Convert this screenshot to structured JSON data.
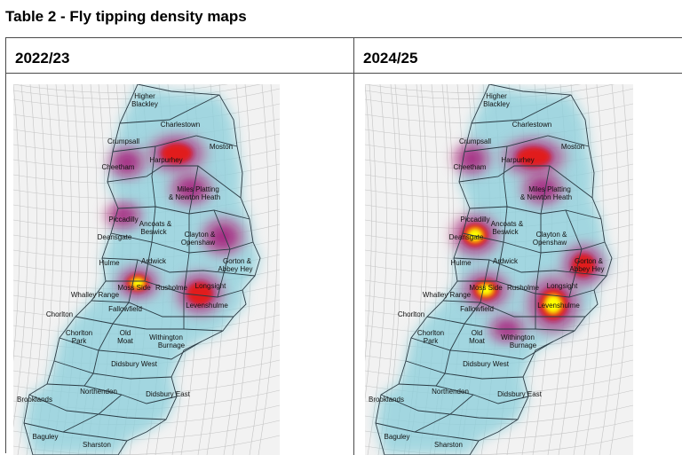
{
  "title": "Table 2 - Fly tipping density maps",
  "columns": [
    {
      "label": "2022/23"
    },
    {
      "label": "2024/25"
    }
  ],
  "map_labels": [
    "Higher Blackley",
    "Charlestown",
    "Crumpsall",
    "Moston",
    "Harpurhey",
    "Cheetham",
    "Miles Platting & Newton Heath",
    "Piccadilly",
    "Ancoats & Beswick",
    "Deansgate",
    "Clayton & Openshaw",
    "Hulme",
    "Ardwick",
    "Gorton & Abbey Hey",
    "Longsight",
    "Moss Side",
    "Rusholme",
    "Whalley Range",
    "Fallowfield",
    "Levenshulme",
    "Chorlton",
    "Chorlton Park",
    "Old Moat",
    "Withington",
    "Burnage",
    "Didsbury West",
    "Didsbury East",
    "Northenden",
    "Brooklands",
    "Baguley",
    "Sharston"
  ],
  "legend": {
    "low": "#8fd0dc",
    "mid": "#a3137a",
    "high": "#ffff00"
  }
}
